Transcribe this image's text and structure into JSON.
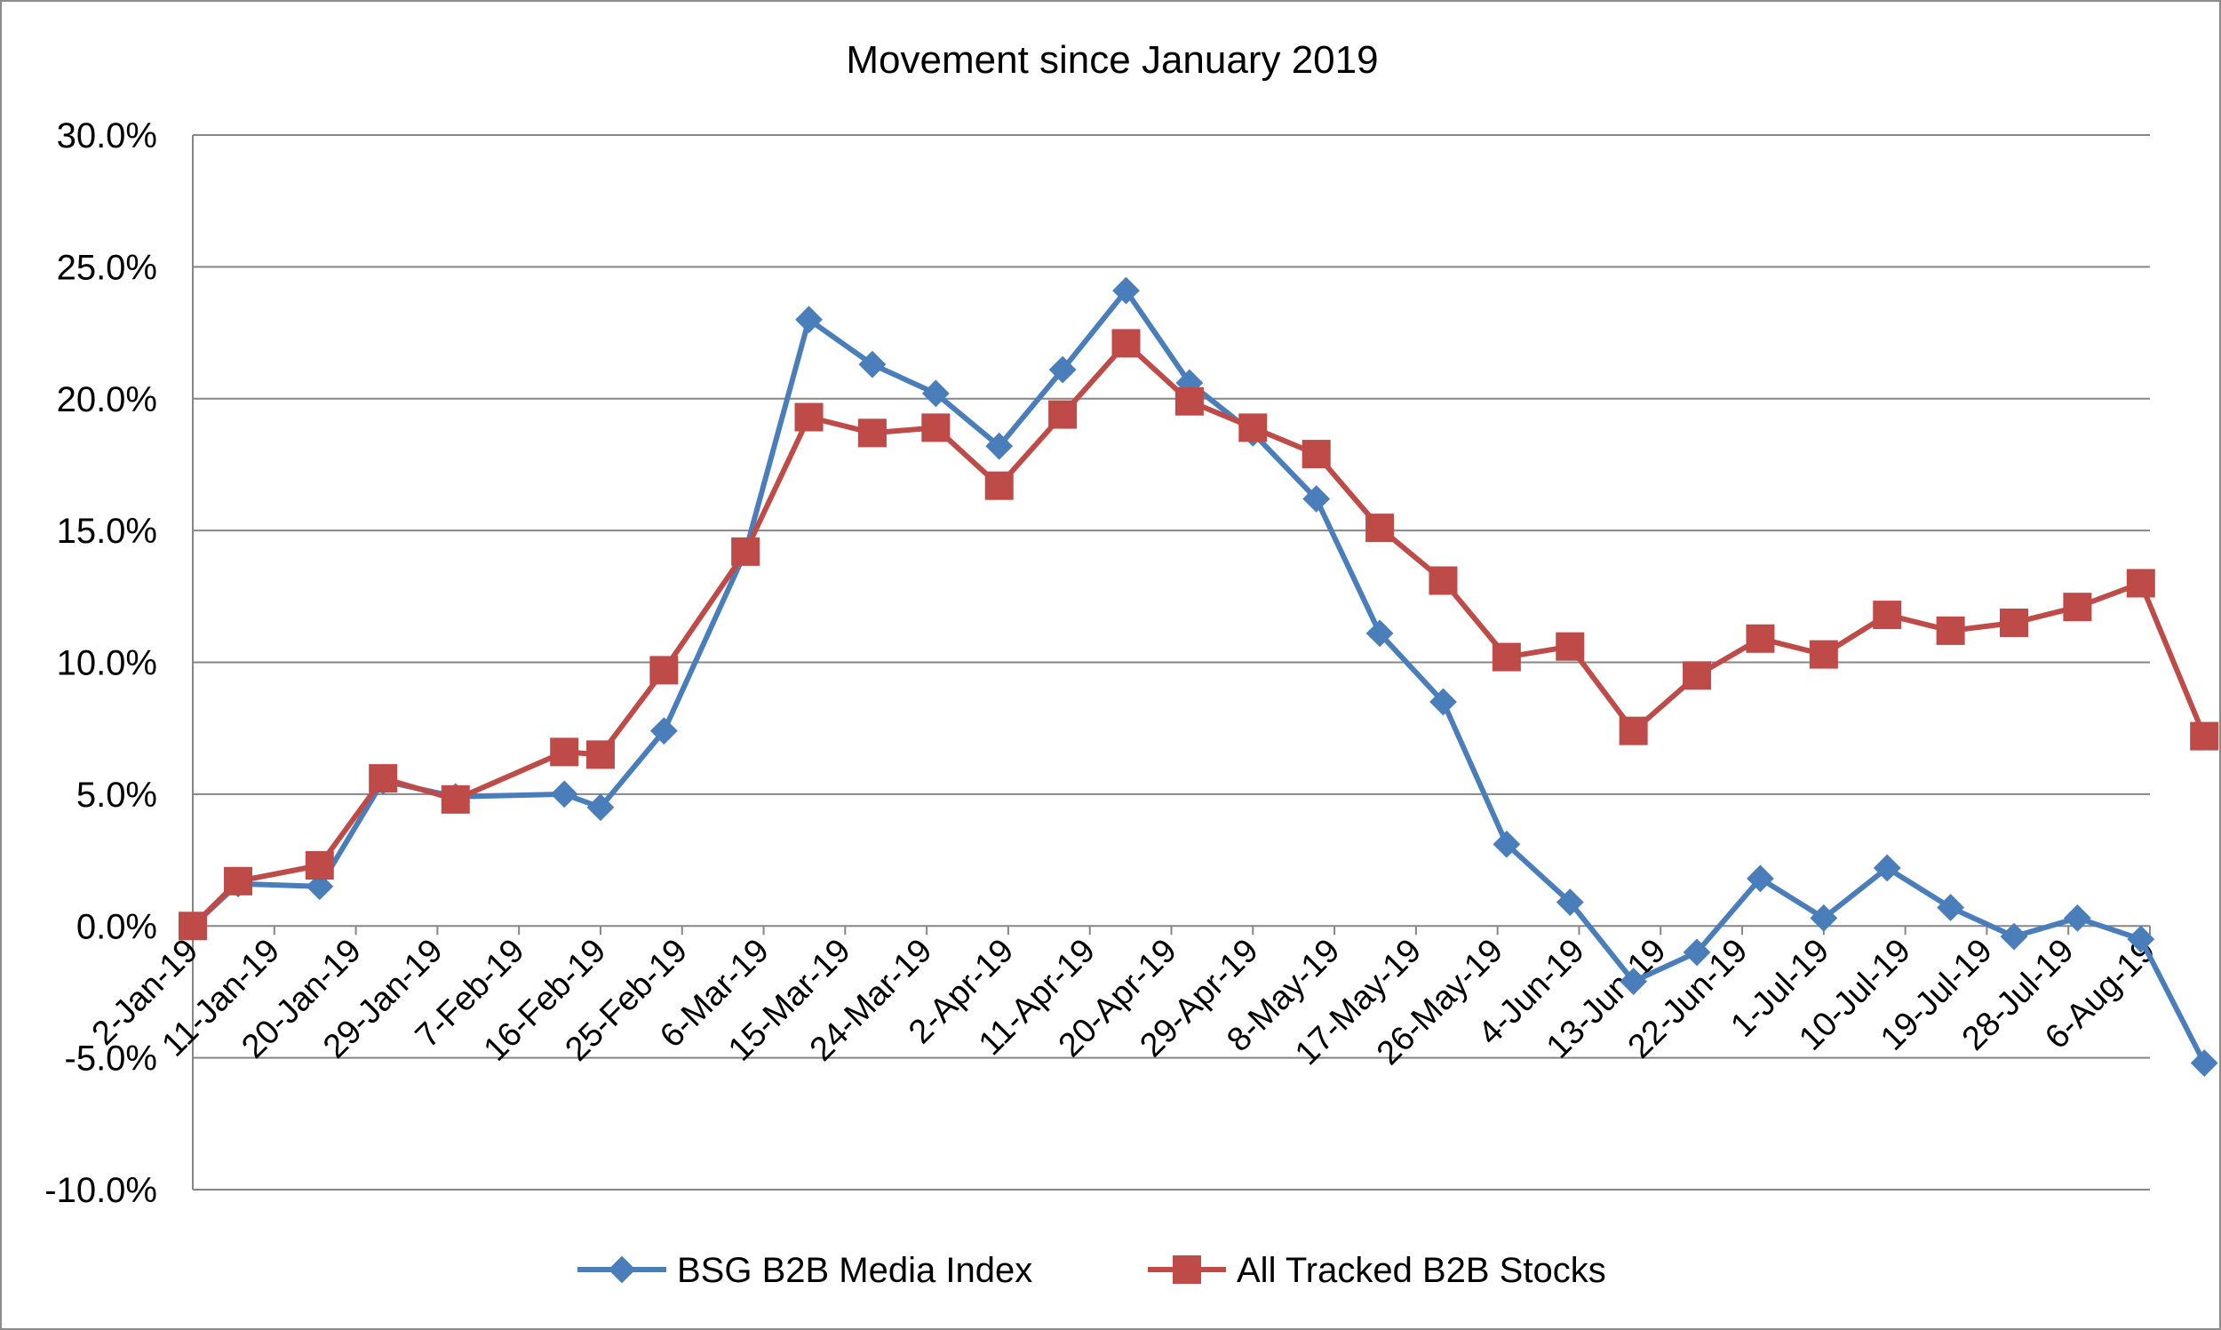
{
  "chart_data": {
    "type": "line",
    "title": "Movement since January 2019",
    "xlabel": "",
    "ylabel": "",
    "ylim": [
      -10,
      30
    ],
    "y_tick_values": [
      -10,
      -5,
      0,
      5,
      10,
      15,
      20,
      25,
      30
    ],
    "y_tick_labels": [
      "-10.0%",
      "-5.0%",
      "0.0%",
      "5.0%",
      "10.0%",
      "15.0%",
      "20.0%",
      "25.0%",
      "30.0%"
    ],
    "grid": true,
    "legend_position": "bottom",
    "categories": [
      "2-Jan-19",
      "11-Jan-19",
      "20-Jan-19",
      "29-Jan-19",
      "7-Feb-19",
      "16-Feb-19",
      "25-Feb-19",
      "6-Mar-19",
      "15-Mar-19",
      "24-Mar-19",
      "2-Apr-19",
      "11-Apr-19",
      "20-Apr-19",
      "29-Apr-19",
      "8-May-19",
      "17-May-19",
      "26-May-19",
      "4-Jun-19",
      "13-Jun-19",
      "22-Jun-19",
      "1-Jul-19",
      "10-Jul-19",
      "19-Jul-19",
      "28-Jul-19",
      "6-Aug-19"
    ],
    "series": [
      {
        "name": "BSG B2B Media Index",
        "color": "#4a7ebb",
        "marker": "diamond",
        "x": [
          "2-Jan-19",
          "7-Jan-19",
          "16-Jan-19",
          "23-Jan-19",
          "31-Jan-19",
          "12-Feb-19",
          "16-Feb-19",
          "23-Feb-19",
          "4-Mar-19",
          "11-Mar-19",
          "18-Mar-19",
          "25-Mar-19",
          "1-Apr-19",
          "8-Apr-19",
          "15-Apr-19",
          "22-Apr-19",
          "29-Apr-19",
          "6-May-19",
          "13-May-19",
          "20-May-19",
          "27-May-19",
          "3-Jun-19",
          "10-Jun-19",
          "17-Jun-19",
          "24-Jun-19",
          "1-Jul-19",
          "8-Jul-19",
          "15-Jul-19",
          "22-Jul-19",
          "29-Jul-19",
          "5-Aug-19",
          "12-Aug-19"
        ],
        "values": [
          0.0,
          1.6,
          1.5,
          5.5,
          4.9,
          5.0,
          4.5,
          7.4,
          14.2,
          23.0,
          21.3,
          20.2,
          18.2,
          21.1,
          24.1,
          20.6,
          18.7,
          16.2,
          11.1,
          8.5,
          3.1,
          0.9,
          -2.1,
          -1.0,
          1.8,
          0.3,
          2.2,
          0.7,
          -0.4,
          0.3,
          -0.5,
          -5.2
        ]
      },
      {
        "name": "All Tracked B2B Stocks",
        "color": "#be4b48",
        "marker": "square",
        "x": [
          "2-Jan-19",
          "7-Jan-19",
          "16-Jan-19",
          "23-Jan-19",
          "31-Jan-19",
          "12-Feb-19",
          "16-Feb-19",
          "23-Feb-19",
          "4-Mar-19",
          "11-Mar-19",
          "18-Mar-19",
          "25-Mar-19",
          "1-Apr-19",
          "8-Apr-19",
          "15-Apr-19",
          "22-Apr-19",
          "29-Apr-19",
          "6-May-19",
          "13-May-19",
          "20-May-19",
          "27-May-19",
          "3-Jun-19",
          "10-Jun-19",
          "17-Jun-19",
          "24-Jun-19",
          "1-Jul-19",
          "8-Jul-19",
          "15-Jul-19",
          "22-Jul-19",
          "29-Jul-19",
          "5-Aug-19",
          "12-Aug-19"
        ],
        "values": [
          0.0,
          1.7,
          2.3,
          5.6,
          4.8,
          6.6,
          6.5,
          9.7,
          14.2,
          19.3,
          18.7,
          18.9,
          16.7,
          19.4,
          22.1,
          19.9,
          18.9,
          17.9,
          15.1,
          13.1,
          10.2,
          10.6,
          7.4,
          9.5,
          10.9,
          10.3,
          11.8,
          11.2,
          11.5,
          12.1,
          13.0,
          7.2
        ]
      }
    ]
  }
}
